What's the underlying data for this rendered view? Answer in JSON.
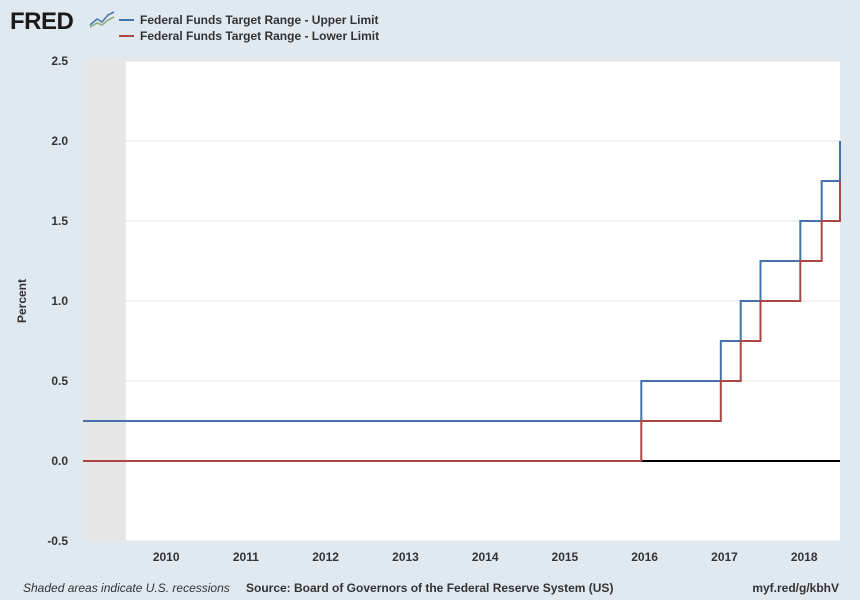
{
  "branding": {
    "logo_text": "FRED",
    "logo_icon": "line-chart-icon"
  },
  "legend": [
    {
      "label": "Federal Funds Target Range - Upper Limit",
      "color": "#4572a7"
    },
    {
      "label": "Federal Funds Target Range - Lower Limit",
      "color": "#aa4643"
    }
  ],
  "footer": {
    "recession_note": "Shaded areas indicate U.S. recessions",
    "source": "Source: Board of Governors of the Federal Reserve System (US)",
    "url": "myf.red/g/kbhV"
  },
  "chart_data": {
    "type": "line",
    "ylabel": "Percent",
    "ylim": [
      -0.5,
      2.5
    ],
    "xlim": [
      "2008-12-16",
      "2018-06-14"
    ],
    "y_ticks": [
      "2.5",
      "2.0",
      "1.5",
      "1.0",
      "0.5",
      "0.0",
      "-0.5"
    ],
    "x_ticks": [
      "2010",
      "2011",
      "2012",
      "2013",
      "2014",
      "2015",
      "2016",
      "2017",
      "2018"
    ],
    "grid": true,
    "recessions": [
      [
        "2008-12-16",
        "2009-06-30"
      ]
    ],
    "zero_line": 0,
    "series": [
      {
        "name": "Federal Funds Target Range - Upper Limit",
        "color": "#4572a7",
        "x": [
          "2008-12-16",
          "2015-12-17",
          "2016-12-15",
          "2017-03-16",
          "2017-06-15",
          "2017-12-14",
          "2018-03-22",
          "2018-06-14"
        ],
        "values": [
          0.25,
          0.5,
          0.75,
          1.0,
          1.25,
          1.5,
          1.75,
          2.0
        ]
      },
      {
        "name": "Federal Funds Target Range - Lower Limit",
        "color": "#aa4643",
        "x": [
          "2008-12-16",
          "2015-12-17",
          "2016-12-15",
          "2017-03-16",
          "2017-06-15",
          "2017-12-14",
          "2018-03-22",
          "2018-06-14"
        ],
        "values": [
          0.0,
          0.25,
          0.5,
          0.75,
          1.0,
          1.25,
          1.5,
          1.75
        ]
      }
    ]
  }
}
